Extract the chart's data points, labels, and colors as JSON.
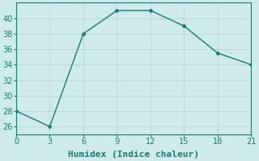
{
  "x": [
    0,
    3,
    6,
    9,
    12,
    15,
    18,
    21
  ],
  "y": [
    28,
    26,
    38,
    41,
    41,
    39,
    35.5,
    34
  ],
  "line_color": "#1a7a6e",
  "marker": "D",
  "marker_size": 2.5,
  "marker_edge_width": 0.5,
  "xlabel": "Humidex (Indice chaleur)",
  "xlim": [
    0,
    21
  ],
  "ylim": [
    25,
    42
  ],
  "yticks": [
    26,
    28,
    30,
    32,
    34,
    36,
    38,
    40
  ],
  "xticks": [
    0,
    3,
    6,
    9,
    12,
    15,
    18,
    21
  ],
  "bg_color": "#ceeaea",
  "grid_color": "#b8d4d4",
  "xlabel_fontsize": 8,
  "tick_fontsize": 7,
  "line_width": 1.0
}
